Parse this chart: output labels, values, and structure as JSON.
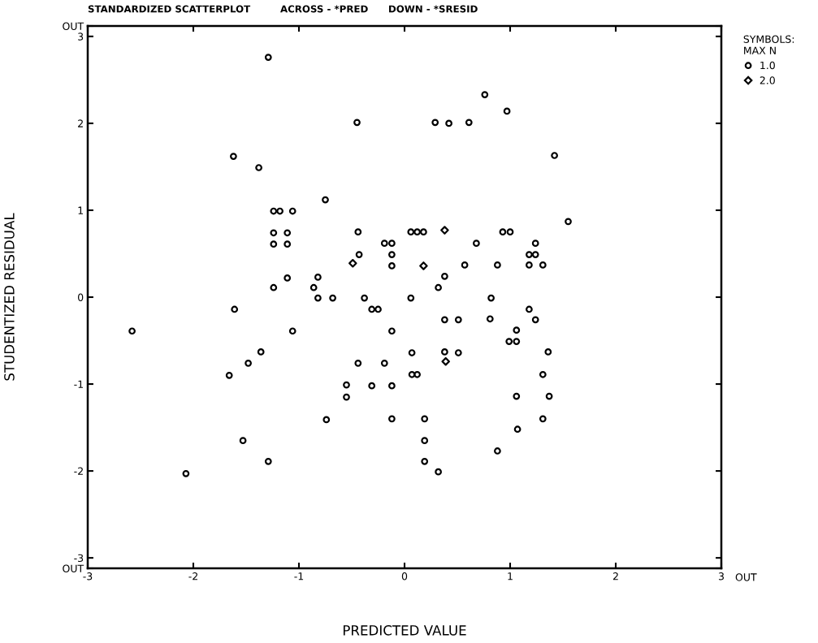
{
  "chart_data": {
    "type": "scatter",
    "title": "STANDARDIZED SCATTERPLOT",
    "subtitle": "ACROSS - *PRED      DOWN - *SRESID",
    "xlabel": "PREDICTED VALUE",
    "ylabel": "STUDENTIZED RESIDUAL",
    "legend_title": "SYMBOLS:\nMAX N",
    "legend": "top right",
    "grid": false,
    "xlim": [
      -3,
      3
    ],
    "xticks": [
      -3,
      -2,
      -1,
      0,
      1,
      2,
      3
    ],
    "ylim": [
      -3.12,
      3.12
    ],
    "yticks": [
      {
        "value": -3.12,
        "label": "OUT"
      },
      -3,
      -2,
      -1,
      0,
      1,
      2,
      3,
      {
        "value": 3.12,
        "label": "OUT"
      }
    ],
    "annotations": [
      "OUT"
    ],
    "series": [
      {
        "name": "1.0",
        "color": "#000000",
        "marker": "circle",
        "x": [
          -2.58,
          -2.07,
          -1.62,
          -1.61,
          -1.66,
          -1.53,
          -1.48,
          -1.38,
          -1.36,
          -1.29,
          -1.29,
          -1.24,
          -1.18,
          -1.06,
          -1.24,
          -1.11,
          -1.24,
          -1.11,
          -1.24,
          -1.11,
          -1.06,
          -0.75,
          -0.74,
          -0.82,
          -0.68,
          -0.86,
          -0.82,
          -0.45,
          -0.44,
          -0.43,
          -0.19,
          -0.12,
          -0.12,
          -0.12,
          -0.38,
          -0.31,
          -0.25,
          -0.12,
          0.76,
          0.97,
          0.29,
          0.42,
          0.61,
          1.42,
          1.55,
          0.06,
          0.12,
          0.18,
          0.93,
          1.0,
          0.68,
          1.24,
          1.18,
          1.24,
          0.57,
          0.88,
          1.18,
          1.31,
          0.38,
          0.32,
          0.06,
          0.82,
          1.18,
          0.38,
          0.51,
          0.81,
          1.24,
          1.06,
          0.99,
          1.06,
          0.07,
          0.38,
          0.51,
          1.36,
          -0.44,
          -0.19,
          0.07,
          0.12,
          1.31,
          -0.55,
          -0.31,
          -0.12,
          -0.55,
          1.06,
          1.37,
          -0.12,
          0.19,
          1.31,
          1.07,
          0.19,
          0.88,
          0.19,
          0.32
        ],
        "values": [
          -0.39,
          -2.03,
          1.62,
          -0.14,
          -0.9,
          -1.65,
          -0.76,
          1.49,
          -0.63,
          -1.89,
          2.76,
          0.99,
          0.99,
          0.99,
          0.74,
          0.74,
          0.61,
          0.61,
          0.11,
          0.22,
          -0.39,
          1.12,
          -1.41,
          -0.01,
          -0.01,
          0.11,
          0.23,
          2.01,
          0.75,
          0.49,
          0.62,
          0.62,
          0.49,
          0.36,
          -0.01,
          -0.14,
          -0.14,
          -0.39,
          2.33,
          2.14,
          2.01,
          2.0,
          2.01,
          1.63,
          0.87,
          0.75,
          0.75,
          0.75,
          0.75,
          0.75,
          0.62,
          0.62,
          0.49,
          0.49,
          0.37,
          0.37,
          0.37,
          0.37,
          0.24,
          0.11,
          -0.01,
          -0.01,
          -0.14,
          -0.26,
          -0.26,
          -0.25,
          -0.26,
          -0.38,
          -0.51,
          -0.51,
          -0.64,
          -0.63,
          -0.64,
          -0.63,
          -0.76,
          -0.76,
          -0.89,
          -0.89,
          -0.89,
          -1.01,
          -1.02,
          -1.02,
          -1.15,
          -1.14,
          -1.14,
          -1.4,
          -1.4,
          -1.4,
          -1.52,
          -1.65,
          -1.77,
          -1.89,
          -2.01
        ]
      },
      {
        "name": "2.0",
        "color": "#000000",
        "marker": "diamond",
        "x": [
          -0.49,
          0.38,
          0.18,
          0.39
        ],
        "values": [
          0.39,
          0.77,
          0.36,
          -0.74
        ]
      }
    ]
  }
}
